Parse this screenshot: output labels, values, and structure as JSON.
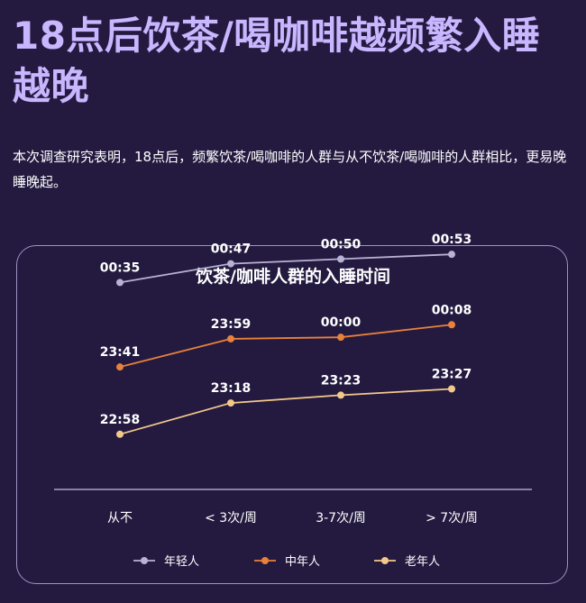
{
  "header": {
    "title": "18点后饮茶/喝咖啡越频繁入睡越晚",
    "description": "本次调查研究表明，18点后，频繁饮茶/喝咖啡的人群与从不饮茶/喝咖啡的人群相比，更易晚睡晚起。"
  },
  "colors": {
    "background": "#241a40",
    "title": "#c8b6ff",
    "young": "#b9b2d3",
    "middle": "#e8813a",
    "old": "#f3c98b"
  },
  "chart_data": {
    "type": "line",
    "title": "饮茶/咖啡人群的入睡时间",
    "categories": [
      "从不",
      "< 3次/周",
      "3-7次/周",
      "> 7次/周"
    ],
    "series": [
      {
        "name": "年轻人",
        "values": [
          "00:35",
          "00:47",
          "00:50",
          "00:53"
        ],
        "minutes_after_midnight": [
          35,
          47,
          50,
          53
        ]
      },
      {
        "name": "中年人",
        "values": [
          "23:41",
          "23:59",
          "00:00",
          "00:08"
        ],
        "minutes_after_midnight": [
          -19,
          -1,
          0,
          8
        ]
      },
      {
        "name": "老年人",
        "values": [
          "22:58",
          "23:18",
          "23:23",
          "23:27"
        ],
        "minutes_after_midnight": [
          -62,
          -42,
          -37,
          -33
        ]
      }
    ],
    "xlabel": "",
    "ylabel": "",
    "grid": false,
    "legend": "bottom"
  }
}
